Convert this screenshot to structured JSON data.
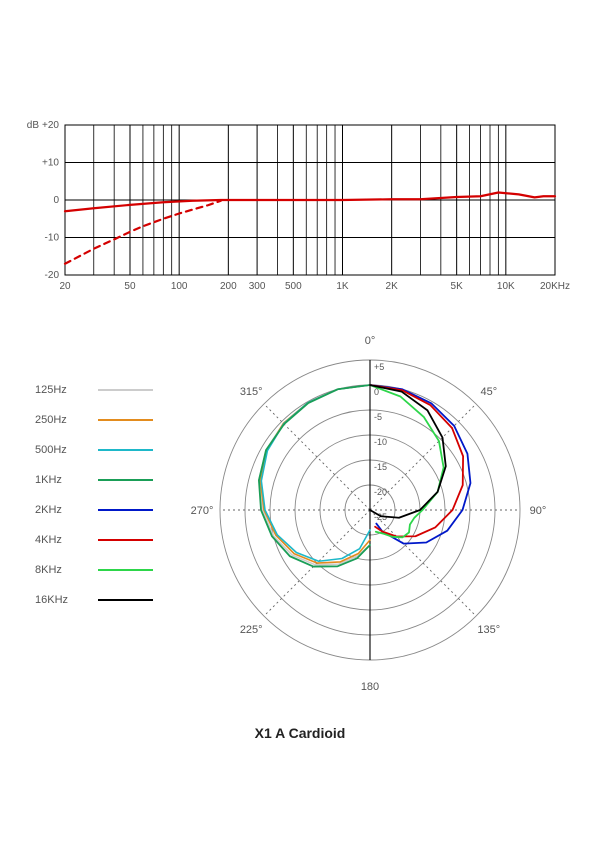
{
  "title": "X1 A Cardioid",
  "colors": {
    "background": "#ffffff",
    "grid": "#000000",
    "grid_light": "#aaaaaa",
    "axis_text": "#555555",
    "polar_circle": "#888888",
    "polar_dotted": "#666666",
    "title_text": "#222222"
  },
  "freq_response": {
    "type": "line",
    "x_axis": {
      "scale": "log",
      "min": 20,
      "max": 20000,
      "ticks": [
        20,
        50,
        100,
        200,
        300,
        500,
        1000,
        2000,
        5000,
        10000,
        20000
      ],
      "tick_labels": [
        "20",
        "50",
        "100",
        "200",
        "300",
        "500",
        "1K",
        "2K",
        "5K",
        "10K",
        "20KHz"
      ],
      "minor_lines": [
        30,
        40,
        60,
        70,
        80,
        90,
        400,
        600,
        700,
        800,
        900,
        3000,
        4000,
        6000,
        7000,
        8000,
        9000
      ],
      "label_fontsize": 10
    },
    "y_axis": {
      "label": "dB",
      "min": -20,
      "max": 20,
      "tick_step": 10,
      "ticks": [
        -20,
        -10,
        0,
        10,
        20
      ],
      "tick_labels": [
        "-20",
        "-10",
        "0",
        "+10",
        "+20"
      ],
      "label_fontsize": 10
    },
    "series": [
      {
        "name": "main",
        "color": "#d40000",
        "line_width": 2.2,
        "dash": "none",
        "points": [
          [
            20,
            -3.0
          ],
          [
            30,
            -2.2
          ],
          [
            50,
            -1.3
          ],
          [
            80,
            -0.6
          ],
          [
            120,
            -0.2
          ],
          [
            180,
            0
          ],
          [
            300,
            0
          ],
          [
            500,
            0
          ],
          [
            1000,
            0
          ],
          [
            2000,
            0.2
          ],
          [
            3000,
            0.2
          ],
          [
            5000,
            0.8
          ],
          [
            7000,
            1.0
          ],
          [
            9000,
            2.0
          ],
          [
            12000,
            1.5
          ],
          [
            15000,
            0.7
          ],
          [
            17000,
            1.0
          ],
          [
            20000,
            1.0
          ]
        ]
      },
      {
        "name": "rolloff",
        "color": "#d40000",
        "line_width": 2.2,
        "dash": "6,5",
        "points": [
          [
            20,
            -17
          ],
          [
            30,
            -13
          ],
          [
            40,
            -10.5
          ],
          [
            50,
            -8.5
          ],
          [
            60,
            -7
          ],
          [
            80,
            -5
          ],
          [
            100,
            -3.6
          ],
          [
            120,
            -2.6
          ],
          [
            150,
            -1.4
          ],
          [
            180,
            -0.2
          ]
        ]
      }
    ]
  },
  "polar": {
    "type": "polar",
    "radius_labels": [
      "+5",
      "0",
      "-5",
      "-10",
      "-15",
      "-20",
      "-25"
    ],
    "radius_label_fontsize": 9,
    "angle_labels": [
      {
        "angle": 0,
        "text": "0°"
      },
      {
        "angle": 45,
        "text": "45°"
      },
      {
        "angle": 90,
        "text": "90°"
      },
      {
        "angle": 135,
        "text": "135°"
      },
      {
        "angle": 180,
        "text": "180"
      },
      {
        "angle": 225,
        "text": "225°"
      },
      {
        "angle": 270,
        "text": "270°"
      },
      {
        "angle": 315,
        "text": "315°"
      }
    ],
    "angle_label_fontsize": 11,
    "circle_count": 7,
    "legend": [
      {
        "label": "125Hz",
        "color": "#cccccc",
        "side": "left"
      },
      {
        "label": "250Hz",
        "color": "#e38c1e",
        "side": "left"
      },
      {
        "label": "500Hz",
        "color": "#1eb8c9",
        "side": "left"
      },
      {
        "label": "1KHz",
        "color": "#1a9e57",
        "side": "left"
      },
      {
        "label": "2KHz",
        "color": "#0018c9",
        "side": "right"
      },
      {
        "label": "4KHz",
        "color": "#d40000",
        "side": "right"
      },
      {
        "label": "8KHz",
        "color": "#2dd64a",
        "side": "right"
      },
      {
        "label": "16KHz",
        "color": "#000000",
        "side": "right"
      }
    ],
    "left_series": [
      {
        "name": "125Hz",
        "color": "#cccccc",
        "line_width": 1.6,
        "points": [
          [
            0,
            0
          ],
          [
            -15,
            0
          ],
          [
            -30,
            -0.2
          ],
          [
            -45,
            -0.5
          ],
          [
            -60,
            -1
          ],
          [
            -75,
            -2
          ],
          [
            -90,
            -3.5
          ],
          [
            -105,
            -5
          ],
          [
            -120,
            -7
          ],
          [
            -135,
            -9.5
          ],
          [
            -150,
            -12.5
          ],
          [
            -165,
            -15.5
          ],
          [
            -180,
            -18
          ]
        ]
      },
      {
        "name": "250Hz",
        "color": "#e38c1e",
        "line_width": 1.6,
        "points": [
          [
            0,
            0
          ],
          [
            -15,
            0
          ],
          [
            -30,
            -0.2
          ],
          [
            -45,
            -0.5
          ],
          [
            -60,
            -1.2
          ],
          [
            -75,
            -2.3
          ],
          [
            -90,
            -3.8
          ],
          [
            -105,
            -5.5
          ],
          [
            -120,
            -7.5
          ],
          [
            -135,
            -10
          ],
          [
            -150,
            -13
          ],
          [
            -165,
            -16
          ],
          [
            -180,
            -19
          ]
        ]
      },
      {
        "name": "500Hz",
        "color": "#1eb8c9",
        "line_width": 1.6,
        "points": [
          [
            0,
            0
          ],
          [
            -15,
            0
          ],
          [
            -30,
            -0.2
          ],
          [
            -45,
            -0.6
          ],
          [
            -60,
            -1.3
          ],
          [
            -75,
            -2.5
          ],
          [
            -90,
            -4.0
          ],
          [
            -105,
            -5.8
          ],
          [
            -120,
            -8
          ],
          [
            -135,
            -10.5
          ],
          [
            -150,
            -13.8
          ],
          [
            -165,
            -17
          ],
          [
            -180,
            -21
          ]
        ]
      },
      {
        "name": "1KHz",
        "color": "#1a9e57",
        "line_width": 1.8,
        "points": [
          [
            0,
            0
          ],
          [
            -15,
            0
          ],
          [
            -30,
            -0.3
          ],
          [
            -45,
            -0.7
          ],
          [
            -60,
            -1.0
          ],
          [
            -75,
            -2.0
          ],
          [
            -90,
            -3.2
          ],
          [
            -105,
            -4.7
          ],
          [
            -120,
            -6.5
          ],
          [
            -135,
            -9
          ],
          [
            -150,
            -12
          ],
          [
            -165,
            -15
          ],
          [
            -180,
            -18
          ]
        ]
      }
    ],
    "right_series": [
      {
        "name": "2KHz",
        "color": "#0018c9",
        "line_width": 1.8,
        "points": [
          [
            0,
            0
          ],
          [
            15,
            0
          ],
          [
            30,
            -0.4
          ],
          [
            45,
            -1.2
          ],
          [
            60,
            -2.5
          ],
          [
            75,
            -4.2
          ],
          [
            90,
            -6.5
          ],
          [
            105,
            -9
          ],
          [
            120,
            -12
          ],
          [
            135,
            -15.5
          ],
          [
            150,
            -20
          ],
          [
            155,
            -22
          ]
        ]
      },
      {
        "name": "4KHz",
        "color": "#d40000",
        "line_width": 1.8,
        "points": [
          [
            0,
            0
          ],
          [
            15,
            -0.2
          ],
          [
            30,
            -0.8
          ],
          [
            45,
            -1.8
          ],
          [
            60,
            -3.5
          ],
          [
            75,
            -5.8
          ],
          [
            90,
            -8.5
          ],
          [
            105,
            -11.5
          ],
          [
            120,
            -14.5
          ],
          [
            135,
            -17.5
          ],
          [
            150,
            -20
          ],
          [
            163,
            -21.5
          ]
        ]
      },
      {
        "name": "8KHz",
        "color": "#2dd64a",
        "line_width": 1.8,
        "points": [
          [
            0,
            0
          ],
          [
            15,
            -1.5
          ],
          [
            30,
            -3.5
          ],
          [
            45,
            -5.5
          ],
          [
            60,
            -8
          ],
          [
            75,
            -11
          ],
          [
            90,
            -14.5
          ],
          [
            100,
            -16
          ],
          [
            110,
            -16.5
          ],
          [
            120,
            -16
          ],
          [
            130,
            -16.5
          ],
          [
            140,
            -18
          ],
          [
            150,
            -19.5
          ],
          [
            165,
            -20.5
          ]
        ]
      },
      {
        "name": "16KHz",
        "color": "#000000",
        "line_width": 1.8,
        "points": [
          [
            0,
            0
          ],
          [
            15,
            -0.5
          ],
          [
            30,
            -2.0
          ],
          [
            45,
            -4.5
          ],
          [
            60,
            -7.5
          ],
          [
            75,
            -11
          ],
          [
            90,
            -15
          ],
          [
            105,
            -19
          ],
          [
            120,
            -22.5
          ],
          [
            135,
            -25
          ],
          [
            140,
            -25.5
          ]
        ]
      }
    ]
  }
}
